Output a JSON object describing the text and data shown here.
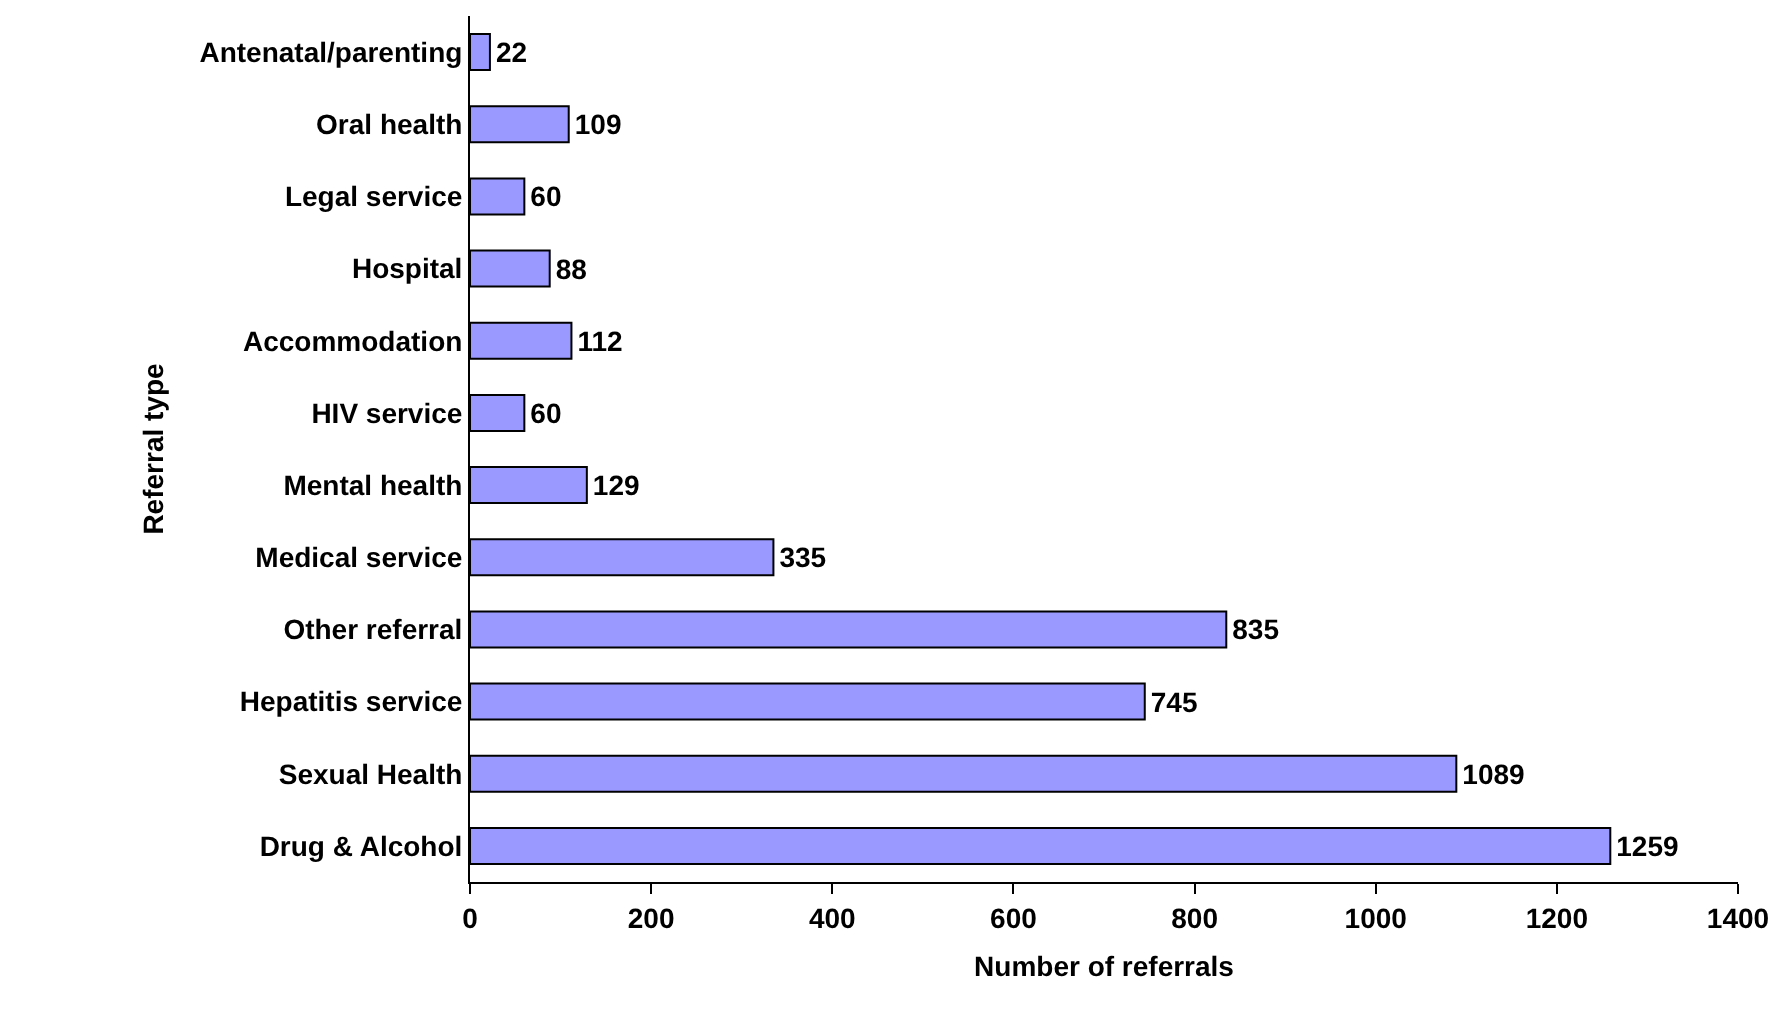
{
  "chart_data": {
    "type": "bar",
    "orientation": "horizontal",
    "xlabel": "Number of referrals",
    "ylabel": "Referral type",
    "categories": [
      "Antenatal/parenting",
      "Oral health",
      "Legal service",
      "Hospital",
      "Accommodation",
      "HIV service",
      "Mental health",
      "Medical service",
      "Other referral",
      "Hepatitis service",
      "Sexual Health",
      "Drug & Alcohol"
    ],
    "values": [
      22,
      109,
      60,
      88,
      112,
      60,
      129,
      335,
      835,
      745,
      1089,
      1259
    ],
    "color": "#9999ff",
    "data_labels": true,
    "grid": false,
    "xlim": [
      0,
      1400
    ],
    "xticks": [
      0,
      200,
      400,
      600,
      800,
      1000,
      1200,
      1400
    ]
  }
}
